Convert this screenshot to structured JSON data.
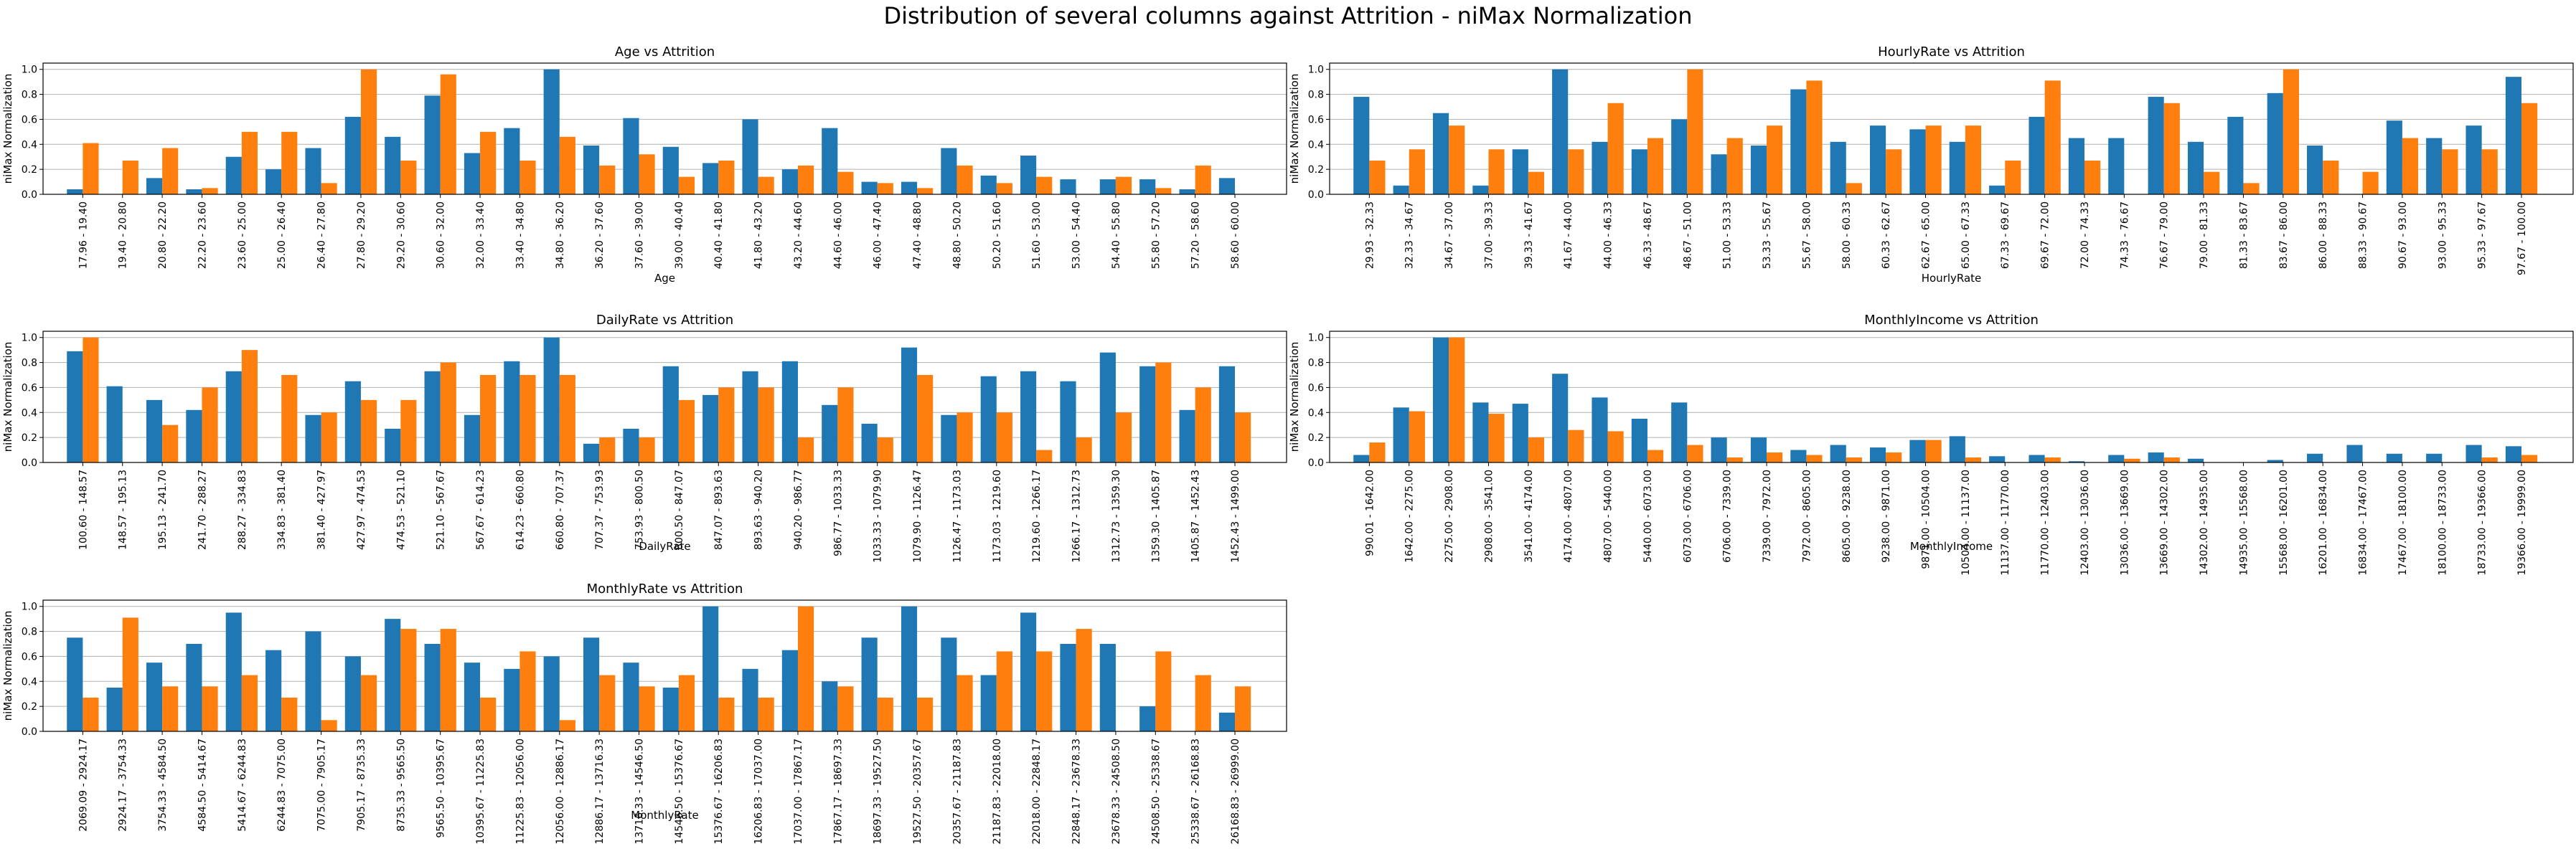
{
  "figure": {
    "title": "Distribution of several columns against Attrition - niMax Normalization",
    "colors": {
      "series_a": "#1f77b4",
      "series_b": "#ff7f0e"
    }
  },
  "chart_data": [
    {
      "type": "bar",
      "title": "Age vs Attrition",
      "xlabel": "Age",
      "ylabel": "niMax Normalization",
      "ylim": [
        0,
        1.05
      ],
      "yticks": [
        "0.0",
        "0.2",
        "0.4",
        "0.6",
        "0.8",
        "1.0"
      ],
      "grid": "horizontal",
      "categories": [
        "17.96 - 19.40",
        "19.40 - 20.80",
        "20.80 - 22.20",
        "22.20 - 23.60",
        "23.60 - 25.00",
        "25.00 - 26.40",
        "26.40 - 27.80",
        "27.80 - 29.20",
        "29.20 - 30.60",
        "30.60 - 32.00",
        "32.00 - 33.40",
        "33.40 - 34.80",
        "34.80 - 36.20",
        "36.20 - 37.60",
        "37.60 - 39.00",
        "39.00 - 40.40",
        "40.40 - 41.80",
        "41.80 - 43.20",
        "43.20 - 44.60",
        "44.60 - 46.00",
        "46.00 - 47.40",
        "47.40 - 48.80",
        "48.80 - 50.20",
        "50.20 - 51.60",
        "51.60 - 53.00",
        "53.00 - 54.40",
        "54.40 - 55.80",
        "55.80 - 57.20",
        "57.20 - 58.60",
        "58.60 - 60.00"
      ],
      "series": [
        {
          "values": [
            0.04,
            0.0,
            0.13,
            0.04,
            0.3,
            0.2,
            0.37,
            0.62,
            0.46,
            0.79,
            0.33,
            0.53,
            1.0,
            0.39,
            0.61,
            0.38,
            0.25,
            0.6,
            0.2,
            0.53,
            0.1,
            0.1,
            0.37,
            0.15,
            0.31,
            0.12,
            0.12,
            0.12,
            0.04,
            0.13
          ]
        },
        {
          "values": [
            0.41,
            0.27,
            0.37,
            0.05,
            0.5,
            0.5,
            0.09,
            1.0,
            0.27,
            0.96,
            0.5,
            0.27,
            0.46,
            0.23,
            0.32,
            0.14,
            0.27,
            0.14,
            0.23,
            0.18,
            0.09,
            0.05,
            0.23,
            0.09,
            0.14,
            0.0,
            0.14,
            0.05,
            0.23,
            0.0
          ]
        }
      ]
    },
    {
      "type": "bar",
      "title": "HourlyRate vs Attrition",
      "xlabel": "HourlyRate",
      "ylabel": "niMax Normalization",
      "ylim": [
        0,
        1.05
      ],
      "yticks": [
        "0.0",
        "0.2",
        "0.4",
        "0.6",
        "0.8",
        "1.0"
      ],
      "grid": "horizontal",
      "categories": [
        "29.93 - 32.33",
        "32.33 - 34.67",
        "34.67 - 37.00",
        "37.00 - 39.33",
        "39.33 - 41.67",
        "41.67 - 44.00",
        "44.00 - 46.33",
        "46.33 - 48.67",
        "48.67 - 51.00",
        "51.00 - 53.33",
        "53.33 - 55.67",
        "55.67 - 58.00",
        "58.00 - 60.33",
        "60.33 - 62.67",
        "62.67 - 65.00",
        "65.00 - 67.33",
        "67.33 - 69.67",
        "69.67 - 72.00",
        "72.00 - 74.33",
        "74.33 - 76.67",
        "76.67 - 79.00",
        "79.00 - 81.33",
        "81.33 - 83.67",
        "83.67 - 86.00",
        "86.00 - 88.33",
        "88.33 - 90.67",
        "90.67 - 93.00",
        "93.00 - 95.33",
        "95.33 - 97.67",
        "97.67 - 100.00"
      ],
      "series": [
        {
          "values": [
            0.78,
            0.07,
            0.65,
            0.07,
            0.36,
            1.0,
            0.42,
            0.36,
            0.6,
            0.32,
            0.39,
            0.84,
            0.42,
            0.55,
            0.52,
            0.42,
            0.07,
            0.62,
            0.45,
            0.45,
            0.78,
            0.42,
            0.62,
            0.81,
            0.39,
            0.0,
            0.59,
            0.45,
            0.55,
            0.94
          ]
        },
        {
          "values": [
            0.27,
            0.36,
            0.55,
            0.36,
            0.18,
            0.36,
            0.73,
            0.45,
            1.0,
            0.45,
            0.55,
            0.91,
            0.09,
            0.36,
            0.55,
            0.55,
            0.27,
            0.91,
            0.27,
            0.0,
            0.73,
            0.18,
            0.09,
            1.0,
            0.27,
            0.18,
            0.45,
            0.36,
            0.36,
            0.73
          ]
        }
      ]
    },
    {
      "type": "bar",
      "title": "DailyRate vs Attrition",
      "xlabel": "DailyRate",
      "ylabel": "niMax Normalization",
      "ylim": [
        0,
        1.05
      ],
      "yticks": [
        "0.0",
        "0.2",
        "0.4",
        "0.6",
        "0.8",
        "1.0"
      ],
      "grid": "horizontal",
      "categories": [
        "100.60 - 148.57",
        "148.57 - 195.13",
        "195.13 - 241.70",
        "241.70 - 288.27",
        "288.27 - 334.83",
        "334.83 - 381.40",
        "381.40 - 427.97",
        "427.97 - 474.53",
        "474.53 - 521.10",
        "521.10 - 567.67",
        "567.67 - 614.23",
        "614.23 - 660.80",
        "660.80 - 707.37",
        "707.37 - 753.93",
        "753.93 - 800.50",
        "800.50 - 847.07",
        "847.07 - 893.63",
        "893.63 - 940.20",
        "940.20 - 986.77",
        "986.77 - 1033.33",
        "1033.33 - 1079.90",
        "1079.90 - 1126.47",
        "1126.47 - 1173.03",
        "1173.03 - 1219.60",
        "1219.60 - 1266.17",
        "1266.17 - 1312.73",
        "1312.73 - 1359.30",
        "1359.30 - 1405.87",
        "1405.87 - 1452.43",
        "1452.43 - 1499.00"
      ],
      "series": [
        {
          "values": [
            0.89,
            0.61,
            0.5,
            0.42,
            0.73,
            0.0,
            0.38,
            0.65,
            0.27,
            0.73,
            0.38,
            0.81,
            1.0,
            0.15,
            0.27,
            0.77,
            0.54,
            0.73,
            0.81,
            0.46,
            0.31,
            0.92,
            0.38,
            0.69,
            0.73,
            0.65,
            0.88,
            0.77,
            0.42,
            0.77
          ]
        },
        {
          "values": [
            1.0,
            0.0,
            0.3,
            0.6,
            0.9,
            0.7,
            0.4,
            0.5,
            0.5,
            0.8,
            0.7,
            0.7,
            0.7,
            0.2,
            0.2,
            0.5,
            0.6,
            0.6,
            0.2,
            0.6,
            0.2,
            0.7,
            0.4,
            0.4,
            0.1,
            0.2,
            0.4,
            0.8,
            0.6,
            0.4
          ]
        }
      ]
    },
    {
      "type": "bar",
      "title": "MonthlyIncome vs Attrition",
      "xlabel": "MonthlyIncome",
      "ylabel": "niMax Normalization",
      "ylim": [
        0,
        1.05
      ],
      "yticks": [
        "0.0",
        "0.2",
        "0.4",
        "0.6",
        "0.8",
        "1.0"
      ],
      "grid": "horizontal",
      "categories": [
        "990.01 - 1642.00",
        "1642.00 - 2275.00",
        "2275.00 - 2908.00",
        "2908.00 - 3541.00",
        "3541.00 - 4174.00",
        "4174.00 - 4807.00",
        "4807.00 - 5440.00",
        "5440.00 - 6073.00",
        "6073.00 - 6706.00",
        "6706.00 - 7339.00",
        "7339.00 - 7972.00",
        "7972.00 - 8605.00",
        "8605.00 - 9238.00",
        "9238.00 - 9871.00",
        "9871.00 - 10504.00",
        "10504.00 - 11137.00",
        "11137.00 - 11770.00",
        "11770.00 - 12403.00",
        "12403.00 - 13036.00",
        "13036.00 - 13669.00",
        "13669.00 - 14302.00",
        "14302.00 - 14935.00",
        "14935.00 - 15568.00",
        "15568.00 - 16201.00",
        "16201.00 - 16834.00",
        "16834.00 - 17467.00",
        "17467.00 - 18100.00",
        "18100.00 - 18733.00",
        "18733.00 - 19366.00",
        "19366.00 - 19999.00"
      ],
      "series": [
        {
          "values": [
            0.06,
            0.44,
            1.0,
            0.48,
            0.47,
            0.71,
            0.52,
            0.35,
            0.48,
            0.2,
            0.2,
            0.1,
            0.14,
            0.12,
            0.18,
            0.21,
            0.05,
            0.06,
            0.01,
            0.06,
            0.08,
            0.03,
            0.0,
            0.02,
            0.07,
            0.14,
            0.07,
            0.07,
            0.14,
            0.13
          ]
        },
        {
          "values": [
            0.16,
            0.41,
            1.0,
            0.39,
            0.2,
            0.26,
            0.25,
            0.1,
            0.14,
            0.04,
            0.08,
            0.06,
            0.04,
            0.08,
            0.18,
            0.04,
            0.0,
            0.04,
            0.0,
            0.03,
            0.04,
            0.0,
            0.0,
            0.0,
            0.0,
            0.0,
            0.0,
            0.0,
            0.04,
            0.06
          ]
        }
      ]
    },
    {
      "type": "bar",
      "title": "MonthlyRate vs Attrition",
      "xlabel": "MonthlyRate",
      "ylabel": "niMax Normalization",
      "ylim": [
        0,
        1.05
      ],
      "yticks": [
        "0.0",
        "0.2",
        "0.4",
        "0.6",
        "0.8",
        "1.0"
      ],
      "grid": "horizontal",
      "categories": [
        "2069.09 - 2924.17",
        "2924.17 - 3754.33",
        "3754.33 - 4584.50",
        "4584.50 - 5414.67",
        "5414.67 - 6244.83",
        "6244.83 - 7075.00",
        "7075.00 - 7905.17",
        "7905.17 - 8735.33",
        "8735.33 - 9565.50",
        "9565.50 - 10395.67",
        "10395.67 - 11225.83",
        "11225.83 - 12056.00",
        "12056.00 - 12886.17",
        "12886.17 - 13716.33",
        "13716.33 - 14546.50",
        "14546.50 - 15376.67",
        "15376.67 - 16206.83",
        "16206.83 - 17037.00",
        "17037.00 - 17867.17",
        "17867.17 - 18697.33",
        "18697.33 - 19527.50",
        "19527.50 - 20357.67",
        "20357.67 - 21187.83",
        "21187.83 - 22018.00",
        "22018.00 - 22848.17",
        "22848.17 - 23678.33",
        "23678.33 - 24508.50",
        "24508.50 - 25338.67",
        "25338.67 - 26168.83",
        "26168.83 - 26999.00"
      ],
      "series": [
        {
          "values": [
            0.75,
            0.35,
            0.55,
            0.7,
            0.95,
            0.65,
            0.8,
            0.6,
            0.9,
            0.7,
            0.55,
            0.5,
            0.6,
            0.75,
            0.55,
            0.35,
            1.0,
            0.5,
            0.65,
            0.4,
            0.75,
            1.0,
            0.75,
            0.45,
            0.95,
            0.7,
            0.7,
            0.2,
            0.0,
            0.15
          ]
        },
        {
          "values": [
            0.27,
            0.91,
            0.36,
            0.36,
            0.45,
            0.27,
            0.09,
            0.45,
            0.82,
            0.82,
            0.27,
            0.64,
            0.09,
            0.45,
            0.36,
            0.45,
            0.27,
            0.27,
            1.0,
            0.36,
            0.27,
            0.27,
            0.45,
            0.64,
            0.64,
            0.82,
            0.0,
            0.64,
            0.45,
            0.36
          ]
        }
      ]
    }
  ]
}
